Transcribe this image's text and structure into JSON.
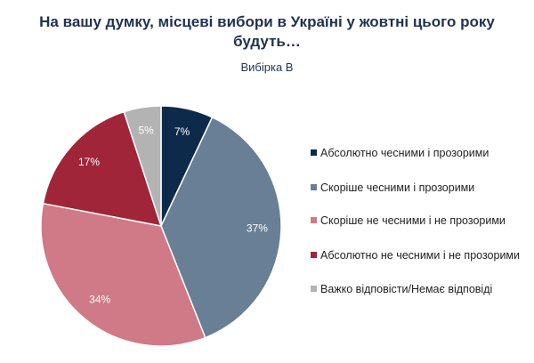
{
  "header": {
    "title": "На вашу думку, місцеві вибори в Україні у жовтні цього року будуть…",
    "subtitle": "Вибірка В"
  },
  "chart_data": {
    "type": "pie",
    "title": "На вашу думку, місцеві вибори в Україні у жовтні цього року будуть…",
    "subtitle": "Вибірка В",
    "legend_position": "right",
    "categories": [
      "Абсолютно чесними і прозорими",
      "Скоріше чесними і прозорими",
      "Скоріше не чесними і не прозорими",
      "Абсолютно не чесними і не прозорими",
      "Важко відповісти/Немає відповіді"
    ],
    "values": [
      7,
      37,
      34,
      17,
      5
    ],
    "data_labels": [
      "7%",
      "37%",
      "34%",
      "17%",
      "5%"
    ],
    "colors": [
      "#0e2a4a",
      "#687f95",
      "#cf7a86",
      "#a12538",
      "#b3b3b3"
    ],
    "label_colors": [
      "#ffffff",
      "#ffffff",
      "#ffffff",
      "#ffffff",
      "#ffffff"
    ]
  }
}
